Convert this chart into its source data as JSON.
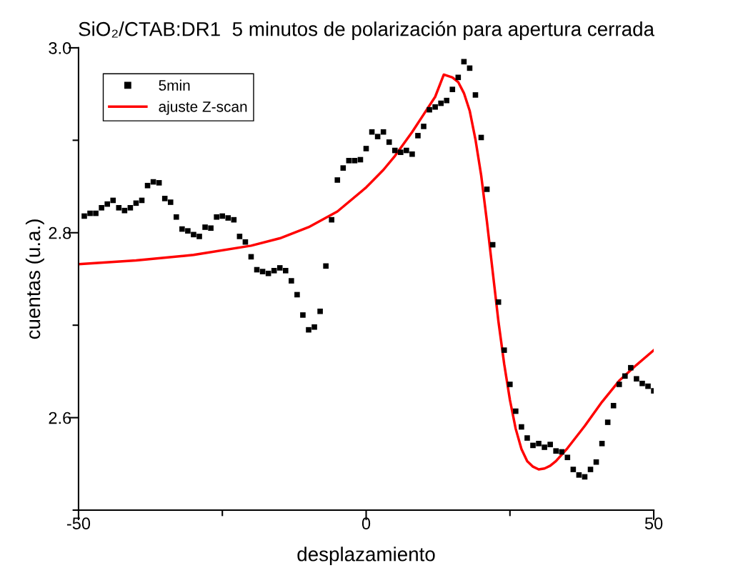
{
  "chart_data": {
    "type": "scatter",
    "title": "SiO₂/CTAB:DR1  5 minutos de polarización para apertura cerrada",
    "xlabel": "desplazamiento",
    "ylabel": "cuentas (u.a.)",
    "xlim": [
      -50,
      50
    ],
    "xticks": [
      -50,
      {
        "value": -25,
        "label": null
      },
      0,
      {
        "value": 25,
        "label": null
      },
      50
    ],
    "ylim": [
      2.5,
      3.0
    ],
    "yticks": [
      {
        "value": 2.5,
        "label": null
      },
      2.6,
      {
        "value": 2.7,
        "label": null
      },
      2.8,
      {
        "value": 2.9,
        "label": null
      },
      {
        "value": 3.0,
        "label": "3.0"
      }
    ],
    "grid": false,
    "legend": "top left",
    "series": [
      {
        "name": "5min",
        "marker": "square",
        "color": "#000000",
        "x": [
          -49,
          -48,
          -47,
          -46,
          -45,
          -44,
          -43,
          -42,
          -41,
          -40,
          -39,
          -38,
          -37,
          -36,
          -35,
          -34,
          -33,
          -32,
          -31,
          -30,
          -29,
          -28,
          -27,
          -26,
          -25,
          -24,
          -23,
          -22,
          -21,
          -20,
          -19,
          -18,
          -17,
          -16,
          -15,
          -14,
          -13,
          -12,
          -11,
          -10,
          -9,
          -8,
          -7,
          -6,
          -5,
          -4,
          -3,
          -2,
          -1,
          0,
          1,
          2,
          3,
          4,
          5,
          6,
          7,
          8,
          9,
          10,
          11,
          12,
          13,
          14,
          15,
          16,
          17,
          18,
          19,
          20,
          21,
          22,
          23,
          24,
          25,
          26,
          27,
          28,
          29,
          30,
          31,
          32,
          33,
          34,
          35,
          36,
          37,
          38,
          39,
          40,
          41,
          42,
          43,
          44,
          45,
          46,
          47,
          48,
          49,
          50
        ],
        "values": [
          2.818,
          2.821,
          2.821,
          2.827,
          2.831,
          2.835,
          2.827,
          2.824,
          2.827,
          2.832,
          2.835,
          2.851,
          2.855,
          2.854,
          2.837,
          2.833,
          2.817,
          2.804,
          2.802,
          2.798,
          2.796,
          2.806,
          2.805,
          2.817,
          2.818,
          2.816,
          2.814,
          2.796,
          2.79,
          2.774,
          2.76,
          2.758,
          2.756,
          2.759,
          2.762,
          2.759,
          2.748,
          2.733,
          2.711,
          2.695,
          2.698,
          2.715,
          2.764,
          2.814,
          2.857,
          2.87,
          2.878,
          2.878,
          2.879,
          2.891,
          2.909,
          2.904,
          2.909,
          2.898,
          2.889,
          2.887,
          2.889,
          2.885,
          2.905,
          2.915,
          2.933,
          2.936,
          2.94,
          2.943,
          2.955,
          2.968,
          2.985,
          2.978,
          2.949,
          2.903,
          2.847,
          2.787,
          2.725,
          2.673,
          2.636,
          2.607,
          2.59,
          2.578,
          2.57,
          2.572,
          2.568,
          2.571,
          2.564,
          2.563,
          2.557,
          2.544,
          2.538,
          2.536,
          2.544,
          2.552,
          2.572,
          2.595,
          2.613,
          2.636,
          2.645,
          2.654,
          2.642,
          2.637,
          2.634,
          2.629
        ]
      },
      {
        "name": "ajuste Z-scan",
        "type": "line",
        "marker": "none",
        "line_style": "solid",
        "color": "#ff0000",
        "x": [
          -50,
          -40,
          -30,
          -20,
          -15,
          -10,
          -5,
          0,
          3,
          5,
          8,
          10,
          12,
          13.5,
          15,
          16,
          17,
          18,
          19,
          20,
          21,
          22,
          23,
          24,
          25,
          26,
          27,
          28,
          29,
          30,
          31,
          32,
          33,
          35,
          38,
          41,
          44,
          47,
          50
        ],
        "values": [
          2.766,
          2.77,
          2.776,
          2.786,
          2.794,
          2.806,
          2.823,
          2.849,
          2.868,
          2.883,
          2.909,
          2.928,
          2.947,
          2.971,
          2.968,
          2.963,
          2.951,
          2.932,
          2.901,
          2.862,
          2.812,
          2.758,
          2.704,
          2.658,
          2.619,
          2.588,
          2.566,
          2.553,
          2.547,
          2.544,
          2.545,
          2.548,
          2.553,
          2.567,
          2.591,
          2.617,
          2.64,
          2.657,
          2.673
        ]
      }
    ]
  }
}
